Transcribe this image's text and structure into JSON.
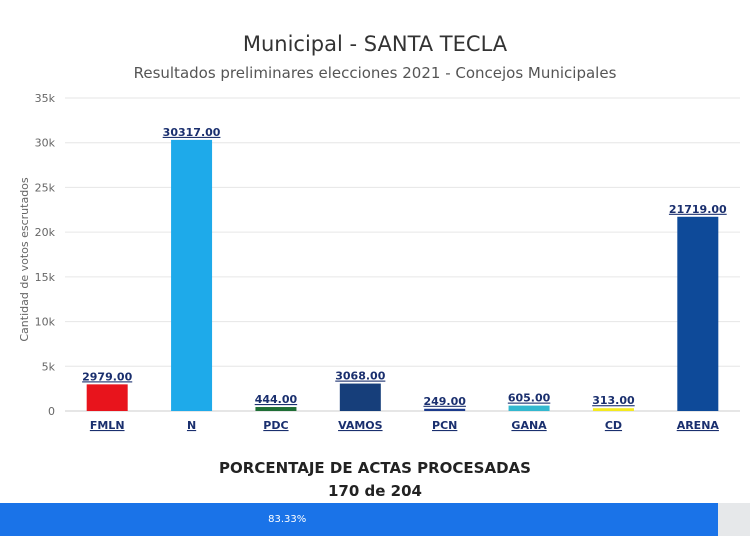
{
  "chart_data": {
    "type": "bar",
    "title": "Municipal - SANTA TECLA",
    "subtitle": "Resultados preliminares elecciones 2021 - Concejos Municipales",
    "ylabel": "Cantidad de votos escrutados",
    "xlabel": "",
    "ylim": [
      0,
      35000
    ],
    "yticks": [
      0,
      5000,
      10000,
      15000,
      20000,
      25000,
      30000,
      35000
    ],
    "ytick_labels": [
      "0",
      "5k",
      "10k",
      "15k",
      "20k",
      "25k",
      "30k",
      "35k"
    ],
    "categories": [
      "FMLN",
      "N",
      "PDC",
      "VAMOS",
      "PCN",
      "GANA",
      "CD",
      "ARENA"
    ],
    "values": [
      2979,
      30317,
      444,
      3068,
      249,
      605,
      313,
      21719
    ],
    "data_labels": [
      "2979.00",
      "30317.00",
      "444.00",
      "3068.00",
      "249.00",
      "605.00",
      "313.00",
      "21719.00"
    ],
    "colors": [
      "#e8141c",
      "#1eaaea",
      "#1f6e35",
      "#163e7a",
      "#1b3a8c",
      "#33b8cf",
      "#f4ea1f",
      "#0e4a99"
    ],
    "grid": true,
    "legend": "none"
  },
  "progress": {
    "heading": "PORCENTAJE DE ACTAS PROCESADAS",
    "count_text": "170 de 204",
    "percent": 83.33,
    "percent_label": "83.33%"
  }
}
